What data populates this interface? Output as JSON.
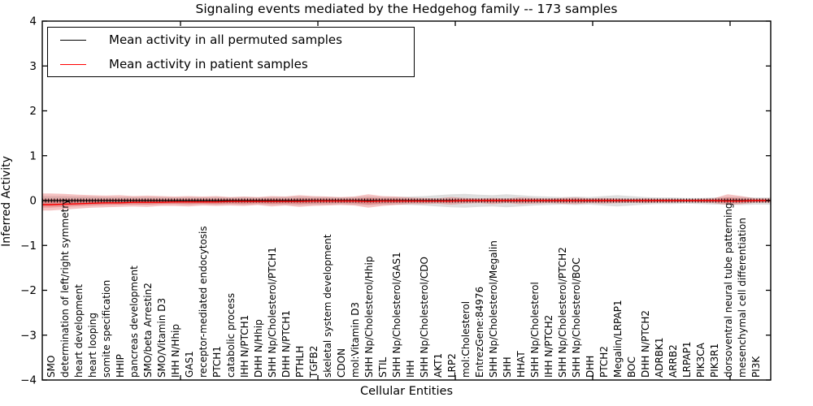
{
  "figure": {
    "title": "Signaling events mediated by the Hedgehog family -- 173 samples",
    "xlabel": "Cellular Entities",
    "ylabel": "Inferred Activity",
    "sample_count_in_title": "173 samples"
  },
  "legend": {
    "position": "upper left",
    "entries": [
      {
        "label": "Mean activity in all permuted samples",
        "color": "#000000"
      },
      {
        "label": "Mean activity in patient samples",
        "color": "#ff0000"
      }
    ]
  },
  "colors": {
    "patient_line": "#ff0000",
    "permuted_line": "#000000",
    "patient_band": "#e04848",
    "permuted_band": "#999999",
    "axis": "#000000"
  },
  "chart_data": {
    "type": "line",
    "title": "Signaling events mediated by the Hedgehog family -- 173 samples",
    "xlabel": "Cellular Entities",
    "ylabel": "Inferred Activity",
    "ylim": [
      -4,
      4
    ],
    "yticks": [
      -4,
      -3,
      -2,
      -1,
      0,
      1,
      2,
      3,
      4
    ],
    "grid": false,
    "legend_position": "upper left",
    "categories": [
      "SMO",
      "determination of left/right symmetry",
      "heart development",
      "heart looping",
      "somite specification",
      "HHIP",
      "pancreas development",
      "SMO/beta Arrestin2",
      "SMO/Vitamin D3",
      "IHH N/Hhip",
      "GAS1",
      "receptor-mediated endocytosis",
      "PTCH1",
      "catabolic process",
      "IHH N/PTCH1",
      "DHH N/Hhip",
      "SHH Np/Cholesterol/PTCH1",
      "DHH N/PTCH1",
      "PTHLH",
      "TGFB2",
      "skeletal system development",
      "CDON",
      "mol:Vitamin D3",
      "SHH Np/Cholesterol/Hhip",
      "STIL",
      "SHH Np/Cholesterol/GAS1",
      "IHH",
      "SHH Np/Cholesterol/CDO",
      "AKT1",
      "LRP2",
      "mol:Cholesterol",
      "EntrezGene:84976",
      "SHH Np/Cholesterol/Megalin",
      "SHH",
      "HHAT",
      "SHH Np/Cholesterol",
      "IHH N/PTCH2",
      "SHH Np/Cholesterol/PTCH2",
      "SHH Np/Cholesterol/BOC",
      "DHH",
      "PTCH2",
      "Megalin/LRPAP1",
      "BOC",
      "DHH N/PTCH2",
      "ADRBK1",
      "ARRB2",
      "LRPAP1",
      "PIK3CA",
      "PIK3R1",
      "dorsoventral neural tube patterning",
      "mesenchymal cell differentiation",
      "PI3K"
    ],
    "series": [
      {
        "name": "Mean activity in all permuted samples",
        "color": "#000000",
        "style": "solid-with-tick-markers",
        "values": [
          0,
          0,
          0,
          0,
          0,
          0,
          0,
          0,
          0,
          0,
          0,
          0,
          0,
          0,
          0,
          0,
          0,
          0,
          0,
          0,
          0,
          0,
          0,
          0,
          0,
          0,
          0,
          0,
          0,
          0,
          0,
          0,
          0,
          0,
          0,
          0,
          0,
          0,
          0,
          0,
          0,
          0,
          0,
          0,
          0,
          0,
          0,
          0,
          0,
          0,
          0,
          0
        ]
      },
      {
        "name": "Mean activity in patient samples",
        "color": "#ff0000",
        "style": "solid",
        "values": [
          -0.09,
          -0.08,
          -0.07,
          -0.06,
          -0.05,
          -0.05,
          -0.04,
          -0.04,
          -0.04,
          -0.03,
          -0.03,
          -0.03,
          -0.03,
          -0.02,
          -0.02,
          -0.02,
          -0.02,
          -0.02,
          -0.02,
          -0.01,
          -0.01,
          -0.01,
          -0.01,
          -0.02,
          -0.01,
          -0.01,
          -0.01,
          -0.01,
          -0.01,
          -0.01,
          0,
          0,
          0,
          0,
          0,
          0,
          0,
          0,
          0,
          0,
          0,
          0,
          0,
          0,
          0,
          0,
          0,
          0,
          0,
          -0.01,
          -0.01,
          0
        ]
      }
    ],
    "bands": [
      {
        "name": "patient samples std envelope",
        "color": "#e04848",
        "opacity": 0.33,
        "upper": [
          0.16,
          0.15,
          0.13,
          0.12,
          0.11,
          0.12,
          0.1,
          0.11,
          0.1,
          0.09,
          0.1,
          0.09,
          0.1,
          0.08,
          0.09,
          0.08,
          0.1,
          0.09,
          0.12,
          0.1,
          0.09,
          0.08,
          0.09,
          0.14,
          0.1,
          0.09,
          0.07,
          0.06,
          0.05,
          0.08,
          0.06,
          0.05,
          0.06,
          0.05,
          0.07,
          0.06,
          0.05,
          0.06,
          0.07,
          0.05,
          0.06,
          0.05,
          0.04,
          0.05,
          0.04,
          0.04,
          0.03,
          0.04,
          0.05,
          0.14,
          0.1,
          0.05
        ],
        "lower": [
          -0.22,
          -0.2,
          -0.18,
          -0.16,
          -0.15,
          -0.14,
          -0.13,
          -0.14,
          -0.12,
          -0.12,
          -0.13,
          -0.11,
          -0.12,
          -0.11,
          -0.12,
          -0.1,
          -0.13,
          -0.11,
          -0.14,
          -0.12,
          -0.11,
          -0.1,
          -0.11,
          -0.16,
          -0.12,
          -0.1,
          -0.08,
          -0.08,
          -0.07,
          -0.09,
          -0.07,
          -0.06,
          -0.08,
          -0.06,
          -0.08,
          -0.07,
          -0.06,
          -0.07,
          -0.08,
          -0.06,
          -0.07,
          -0.06,
          -0.05,
          -0.06,
          -0.05,
          -0.05,
          -0.04,
          -0.05,
          -0.06,
          -0.1,
          -0.08,
          -0.05
        ]
      },
      {
        "name": "permuted samples std envelope",
        "color": "#999999",
        "opacity": 0.32,
        "upper": [
          0.1,
          0.1,
          0.09,
          0.09,
          0.08,
          0.08,
          0.08,
          0.08,
          0.08,
          0.07,
          0.08,
          0.07,
          0.08,
          0.07,
          0.08,
          0.07,
          0.08,
          0.08,
          0.09,
          0.08,
          0.08,
          0.07,
          0.08,
          0.09,
          0.08,
          0.08,
          0.09,
          0.1,
          0.12,
          0.14,
          0.15,
          0.13,
          0.12,
          0.14,
          0.12,
          0.1,
          0.09,
          0.08,
          0.09,
          0.08,
          0.1,
          0.12,
          0.1,
          0.08,
          0.07,
          0.07,
          0.06,
          0.06,
          0.07,
          0.08,
          0.08,
          0.07
        ],
        "lower": [
          -0.12,
          -0.11,
          -0.1,
          -0.1,
          -0.09,
          -0.09,
          -0.09,
          -0.09,
          -0.08,
          -0.08,
          -0.09,
          -0.08,
          -0.09,
          -0.08,
          -0.09,
          -0.08,
          -0.09,
          -0.09,
          -0.1,
          -0.09,
          -0.09,
          -0.08,
          -0.09,
          -0.1,
          -0.09,
          -0.09,
          -0.1,
          -0.11,
          -0.13,
          -0.15,
          -0.16,
          -0.14,
          -0.13,
          -0.15,
          -0.13,
          -0.11,
          -0.1,
          -0.09,
          -0.1,
          -0.09,
          -0.11,
          -0.13,
          -0.11,
          -0.09,
          -0.08,
          -0.08,
          -0.07,
          -0.08,
          -0.09,
          -0.09,
          -0.1,
          -0.09
        ]
      }
    ]
  }
}
